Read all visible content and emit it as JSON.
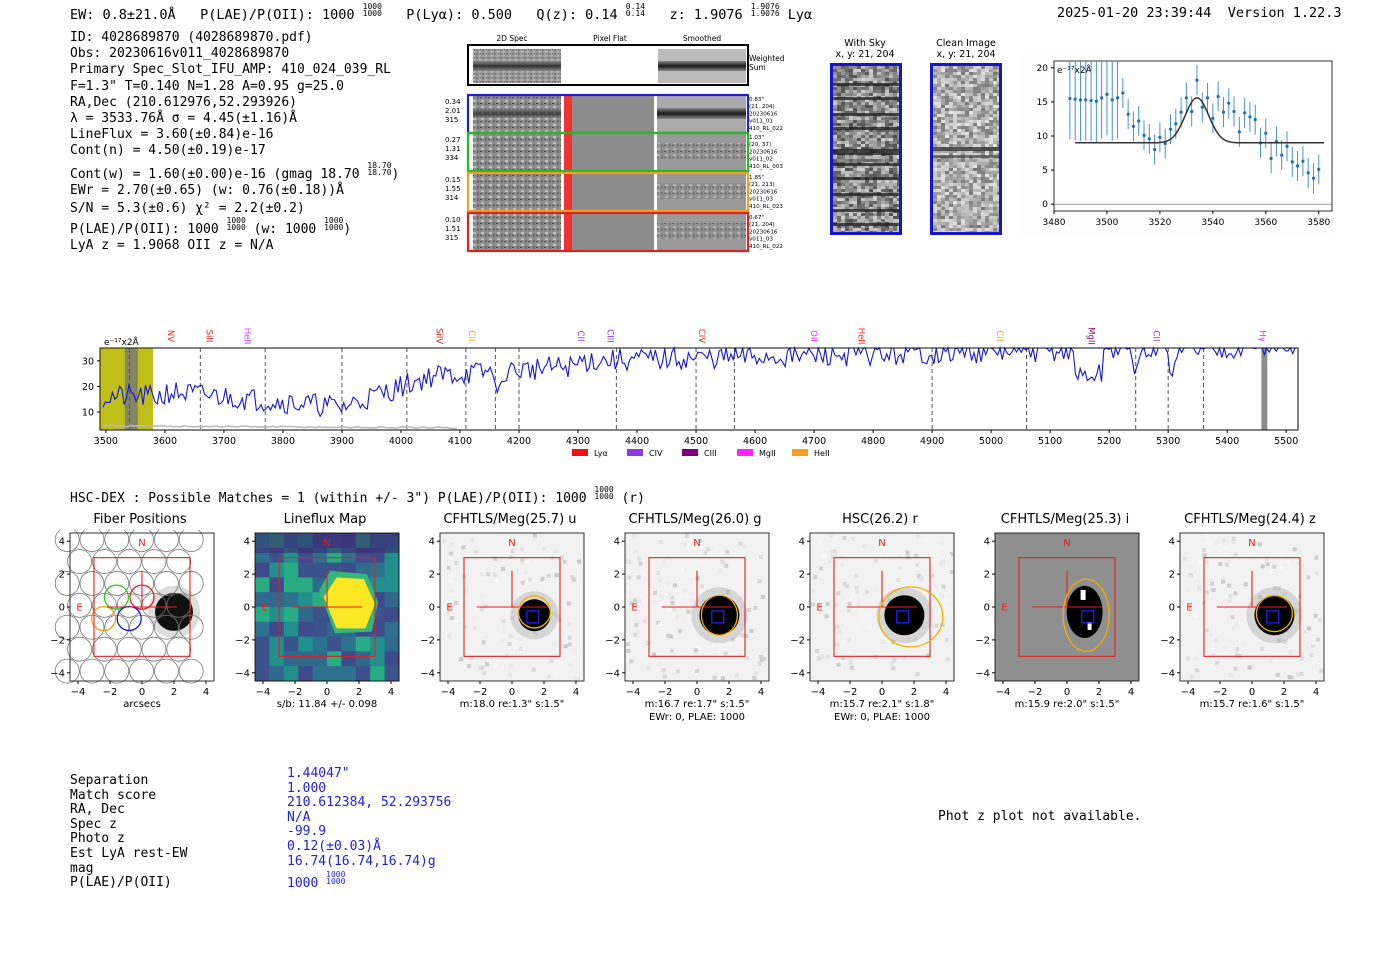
{
  "header": {
    "ew": "EW: 0.8±21.0Å",
    "plae_label": "P(LAE)/P(OII): 1000",
    "plae_sup_hi": "1000",
    "plae_sup_lo": "1000",
    "plya": "P(Lyα): 0.500",
    "qz_label": "Q(z): 0.14",
    "qz_sup_hi": "0.14",
    "qz_sup_lo": "0.14",
    "z_label": "z: 1.9076",
    "z_sup_hi": "1.9076",
    "z_sup_lo": "1.9076",
    "z_line": "Lyα",
    "timestamp": "2025-01-20 23:39:44",
    "version": "Version 1.22.3"
  },
  "info": {
    "id": "ID: 4028689870 (4028689870.pdf)",
    "obs": "Obs: 20230616v011_4028689870",
    "primary": "Primary Spec_Slot_IFU_AMP: 410_024_039_RL",
    "params": "F=1.3\"  T=0.140  N=1.28  A=0.95  g=25.0",
    "radec": "RA,Dec (210.612976,52.293926)",
    "lambda": "λ = 3533.76Å  σ = 4.45(±1.16)Å",
    "lineflux": "LineFlux = 3.60(±0.84)e-16",
    "contn": "Cont(n) = 4.50(±0.19)e-17",
    "contw_a": "Cont(w) = 1.60(±0.00)e-16 (gmag 18.70",
    "contw_sup_hi": "18.70",
    "contw_sup_lo": "18.70",
    "contw_b": ")",
    "ewr": "EWr = 2.70(±0.65) (w: 0.76(±0.18))Å",
    "sn": "S/N = 5.3(±0.6)  χ² = 2.2(±0.2)",
    "plae_a": "P(LAE)/P(OII): 1000",
    "plae_hi": "1000",
    "plae_lo": "1000",
    "plae_b": "(w: 1000",
    "plae_w_hi": "1000",
    "plae_w_lo": "1000",
    "plae_c": ")",
    "lyaz": "LyA z = 1.9068  OII z = N/A"
  },
  "cutouts": {
    "col_2d": "2D Spec",
    "col_flat": "Pixel Flat",
    "col_smooth": "Smoothed",
    "weighted": "Weighted Sum",
    "rows": [
      {
        "left": [
          "0.34",
          "2.01",
          "315"
        ],
        "right": [
          "0.83\"",
          "(21, 204)",
          "20230616",
          "v011_01",
          "410_RL_022"
        ],
        "color": "#2222cc"
      },
      {
        "left": [
          "0.27",
          "1.31",
          "334"
        ],
        "right": [
          "1.03\"",
          "(20, 37)",
          "20230616",
          "v011_02",
          "410_RL_003"
        ],
        "color": "#22bb22"
      },
      {
        "left": [
          "0.15",
          "1.55",
          "314"
        ],
        "right": [
          "1.85\"",
          "(21, 213)",
          "20230616",
          "v011_03",
          "410_RL_023"
        ],
        "color": "#f0a020"
      },
      {
        "left": [
          "0.10",
          "1.51",
          "315"
        ],
        "right": [
          "0.67\"",
          "(21, 204)",
          "20230616",
          "v011_03",
          "410_RL_022"
        ],
        "color": "#dd2222"
      }
    ]
  },
  "sky": {
    "with_sky": "With Sky",
    "with_sky_xy": "x, y: 21, 204",
    "clean": "Clean Image",
    "clean_xy": "x, y: 21, 204"
  },
  "zoom_chart": {
    "type": "scatter",
    "unit_label": "e⁻¹⁷x2Å",
    "xlim": [
      3480,
      3585
    ],
    "ylim": [
      -1,
      21
    ],
    "x_ticks": [
      "3480",
      "3500",
      "3520",
      "3540",
      "3560",
      "3580"
    ],
    "y_ticks": [
      "0",
      "5",
      "10",
      "15",
      "20"
    ],
    "points": [
      [
        3486,
        15.5
      ],
      [
        3488,
        15.4
      ],
      [
        3490,
        15.3
      ],
      [
        3492,
        15.3
      ],
      [
        3494,
        15.2
      ],
      [
        3496,
        15.1
      ],
      [
        3498,
        15.6
      ],
      [
        3500,
        16.1
      ],
      [
        3502,
        15.3
      ],
      [
        3504,
        15.6
      ],
      [
        3506,
        16.3
      ],
      [
        3508,
        13.2
      ],
      [
        3510,
        11.4
      ],
      [
        3512,
        12.2
      ],
      [
        3514,
        10.1
      ],
      [
        3516,
        9.6
      ],
      [
        3518,
        8.0
      ],
      [
        3520,
        9.8
      ],
      [
        3522,
        8.9
      ],
      [
        3524,
        11.0
      ],
      [
        3526,
        11.8
      ],
      [
        3528,
        13.5
      ],
      [
        3530,
        15.6
      ],
      [
        3532,
        13.6
      ],
      [
        3534,
        18.2
      ],
      [
        3536,
        14.2
      ],
      [
        3538,
        15.6
      ],
      [
        3540,
        12.6
      ],
      [
        3542,
        15.8
      ],
      [
        3544,
        13.5
      ],
      [
        3546,
        14.8
      ],
      [
        3548,
        13.6
      ],
      [
        3550,
        10.6
      ],
      [
        3552,
        13.4
      ],
      [
        3554,
        12.8
      ],
      [
        3556,
        12.4
      ],
      [
        3558,
        9.0
      ],
      [
        3560,
        10.4
      ],
      [
        3562,
        6.7
      ],
      [
        3564,
        9.2
      ],
      [
        3566,
        7.2
      ],
      [
        3568,
        8.5
      ],
      [
        3570,
        6.2
      ],
      [
        3572,
        5.6
      ],
      [
        3574,
        6.3
      ],
      [
        3576,
        4.6
      ],
      [
        3578,
        3.8
      ],
      [
        3580,
        5.1
      ]
    ],
    "fit": {
      "continuum": 9.0,
      "peak": 15.6,
      "center": 3534,
      "sigma": 4.45
    }
  },
  "full_spec": {
    "type": "line",
    "unit_label": "e⁻¹⁷x2Å",
    "xlim": [
      3490,
      5520
    ],
    "ylim": [
      3,
      35
    ],
    "x_ticks": [
      "3500",
      "3600",
      "3700",
      "3800",
      "3900",
      "4000",
      "4100",
      "4200",
      "4300",
      "4400",
      "4500",
      "4600",
      "4700",
      "4800",
      "4900",
      "5000",
      "5100",
      "5200",
      "5300",
      "5400",
      "5500"
    ],
    "y_ticks": [
      "10",
      "20",
      "30"
    ],
    "line_labels": [
      {
        "text": "NV",
        "wave": 3600,
        "color": "#e02020"
      },
      {
        "text": "SiII",
        "wave": 3665,
        "color": "#e02020"
      },
      {
        "text": "HeII",
        "wave": 3730,
        "color": "#cc33ee"
      },
      {
        "text": "SiIV",
        "wave": 4055,
        "color": "#e02020"
      },
      {
        "text": "CII",
        "wave": 4110,
        "color": "#f0a020"
      },
      {
        "text": "CII",
        "wave": 4295,
        "color": "#8833ee"
      },
      {
        "text": "CIII",
        "wave": 4345,
        "color": "#8833ee"
      },
      {
        "text": "CIV",
        "wave": 4500,
        "color": "#e02020"
      },
      {
        "text": "OII",
        "wave": 4690,
        "color": "#ee22ee"
      },
      {
        "text": "HeII",
        "wave": 4770,
        "color": "#e02020"
      },
      {
        "text": "CII",
        "wave": 5005,
        "color": "#f0a020"
      },
      {
        "text": "MgII",
        "wave": 5160,
        "color": "#880088"
      },
      {
        "text": "CII",
        "wave": 5270,
        "color": "#8833ee"
      },
      {
        "text": "Hγ",
        "wave": 5450,
        "color": "#ee22ee"
      }
    ],
    "dashed_lines": [
      3540,
      3660,
      3770,
      3900,
      4010,
      4110,
      4160,
      4200,
      4365,
      4500,
      4565,
      4900,
      5060,
      5245,
      5300,
      5360
    ],
    "legend": [
      {
        "label": "Lyα",
        "color": "#ee1111"
      },
      {
        "label": "CIV",
        "color": "#8a3ae0"
      },
      {
        "label": "CIII",
        "color": "#7a007a"
      },
      {
        "label": "MgII",
        "color": "#ff22ff"
      },
      {
        "label": "HeII",
        "color": "#f5a020"
      }
    ]
  },
  "hsc": {
    "title_a": "HSC-DEX : Possible Matches = 1 (within +/- 3\")  P(LAE)/P(OII): 1000",
    "title_hi": "1000",
    "title_lo": "1000",
    "title_b": "(r)"
  },
  "panels": [
    {
      "title": "Fiber Positions",
      "bottom1": "arcsecs",
      "bottom2": "",
      "kind": "fiber"
    },
    {
      "title": "Lineflux Map",
      "bottom1": "s/b: 11.84 +/- 0.098",
      "bottom2": "",
      "kind": "lineflux"
    },
    {
      "title": "CFHTLS/Meg(25.7) u",
      "bottom1": "m:18.0  re:1.3\"  s:1.5\"",
      "bottom2": "",
      "kind": "u"
    },
    {
      "title": "CFHTLS/Meg(26.0) g",
      "bottom1": "m:16.7  re:1.7\"  s:1.5\"",
      "bottom2": "EWr: 0, PLAE: 1000",
      "kind": "g"
    },
    {
      "title": "HSC(26.2) r",
      "bottom1": "m:15.7  re:2.1\"  s:1.8\"",
      "bottom2": "EWr: 0, PLAE: 1000",
      "kind": "r"
    },
    {
      "title": "CFHTLS/Meg(25.3) i",
      "bottom1": "m:15.9  re:2.0\"  s:1.5\"",
      "bottom2": "",
      "kind": "i"
    },
    {
      "title": "CFHTLS/Meg(24.4) z",
      "bottom1": "m:15.7  re:1.6\"  s:1.5\"",
      "bottom2": "",
      "kind": "z"
    }
  ],
  "panel_axis": {
    "ticks": [
      "−4",
      "−2",
      "0",
      "2",
      "4"
    ],
    "north": "N",
    "east": "E"
  },
  "match_table": {
    "labels": [
      "Separation",
      "Match score",
      "RA, Dec",
      "Spec z",
      "Photo z",
      "Est LyA rest-EW",
      "mag",
      "P(LAE)/P(OII)"
    ],
    "values": [
      "1.44047\"",
      "1.000",
      "210.612384, 52.293756",
      "N/A",
      "-99.9",
      "0.12(±0.03)Å",
      "16.74(16.74,16.74)g",
      "1000"
    ],
    "plae_hi": "1000",
    "plae_lo": "1000"
  },
  "photz_msg": "Phot z plot not available."
}
